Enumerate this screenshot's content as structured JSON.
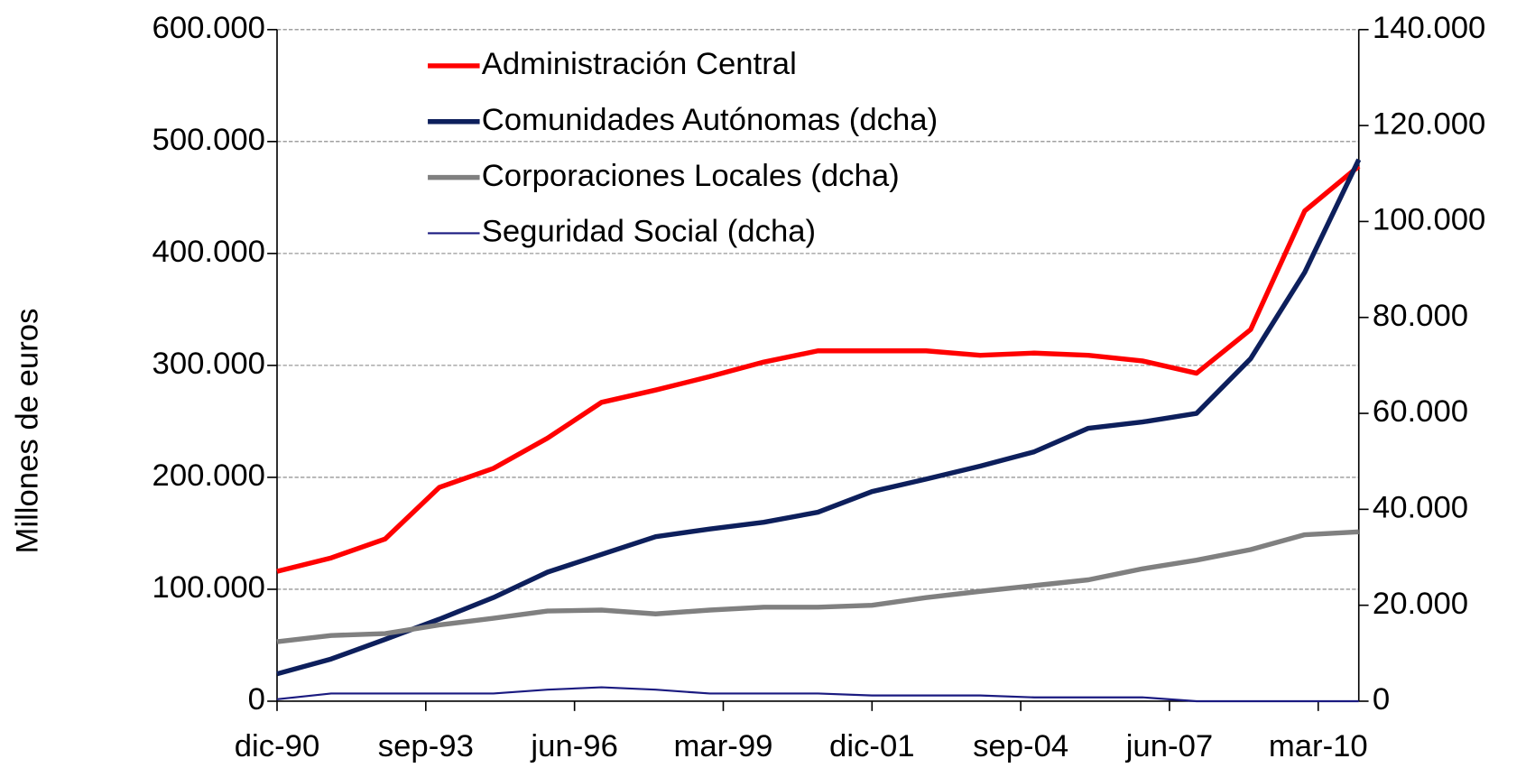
{
  "chart_data": {
    "type": "line",
    "y_label": "Millones de euros",
    "x": [
      1990.917,
      1991.917,
      1992.917,
      1993.917,
      1994.917,
      1995.917,
      1996.917,
      1997.917,
      1998.917,
      1999.917,
      2000.917,
      2001.917,
      2002.917,
      2003.917,
      2004.917,
      2005.917,
      2006.917,
      2007.917,
      2008.917,
      2009.917,
      2010.917
    ],
    "xlim": [
      1990.917,
      2010.917
    ],
    "xticks": [
      {
        "value": 1990.917,
        "label": "dic-90"
      },
      {
        "value": 1993.667,
        "label": "sep-93"
      },
      {
        "value": 1996.417,
        "label": "jun-96"
      },
      {
        "value": 1999.167,
        "label": "mar-99"
      },
      {
        "value": 2001.917,
        "label": "dic-01"
      },
      {
        "value": 2004.667,
        "label": "sep-04"
      },
      {
        "value": 2007.417,
        "label": "jun-07"
      },
      {
        "value": 2010.167,
        "label": "mar-10"
      }
    ],
    "ylim": [
      0,
      600000
    ],
    "yticks": [
      0,
      {
        "value": 100000,
        "label": "100.000"
      },
      {
        "value": 200000,
        "label": "200.000"
      },
      {
        "value": 300000,
        "label": "300.000"
      },
      {
        "value": 400000,
        "label": "400.000"
      },
      {
        "value": 500000,
        "label": "500.000"
      },
      {
        "value": 600000,
        "label": "600.000"
      }
    ],
    "y2lim": [
      0,
      140000
    ],
    "y2ticks": [
      0,
      {
        "value": 20000,
        "label": "20.000"
      },
      {
        "value": 40000,
        "label": "40.000"
      },
      {
        "value": 60000,
        "label": "60.000"
      },
      {
        "value": 80000,
        "label": "80.000"
      },
      {
        "value": 100000,
        "label": "100.000"
      },
      {
        "value": 120000,
        "label": "120.000"
      },
      {
        "value": 140000,
        "label": "140.000"
      }
    ],
    "grid": true,
    "series": [
      {
        "name": "Administración Central",
        "color": "#ff0000",
        "width": 5,
        "values": [
          116000,
          128000,
          145000,
          191000,
          208000,
          235000,
          267000,
          278000,
          290000,
          303000,
          313000,
          313000,
          313000,
          309000,
          311000,
          309000,
          304000,
          293000,
          332000,
          438000,
          478000
        ]
      },
      {
        "name": "Comunidades Autónomas (dcha)",
        "color": "#0d1f5c",
        "width": 5,
        "axis": "y2",
        "values": [
          5700,
          8800,
          12900,
          17100,
          21600,
          26900,
          30600,
          34300,
          35900,
          37300,
          39400,
          43700,
          46300,
          49000,
          52000,
          56900,
          58200,
          60000,
          71400,
          89400,
          112900
        ]
      },
      {
        "name": "Corporaciones Locales (dcha)",
        "color": "#808080",
        "width": 5,
        "axis": "y2",
        "values": [
          12400,
          13700,
          14100,
          15900,
          17300,
          18800,
          19000,
          18200,
          19000,
          19600,
          19600,
          20000,
          21600,
          22900,
          24100,
          25300,
          27600,
          29400,
          31600,
          34700,
          35300
        ]
      },
      {
        "name": "Seguridad Social (dcha)",
        "color": "#1a1a80",
        "width": 2,
        "axis": "y2",
        "values": [
          400,
          1600,
          1600,
          1600,
          1600,
          2400,
          2900,
          2400,
          1600,
          1600,
          1600,
          1200,
          1200,
          1200,
          800,
          800,
          800,
          0,
          0,
          0,
          0
        ]
      }
    ]
  }
}
